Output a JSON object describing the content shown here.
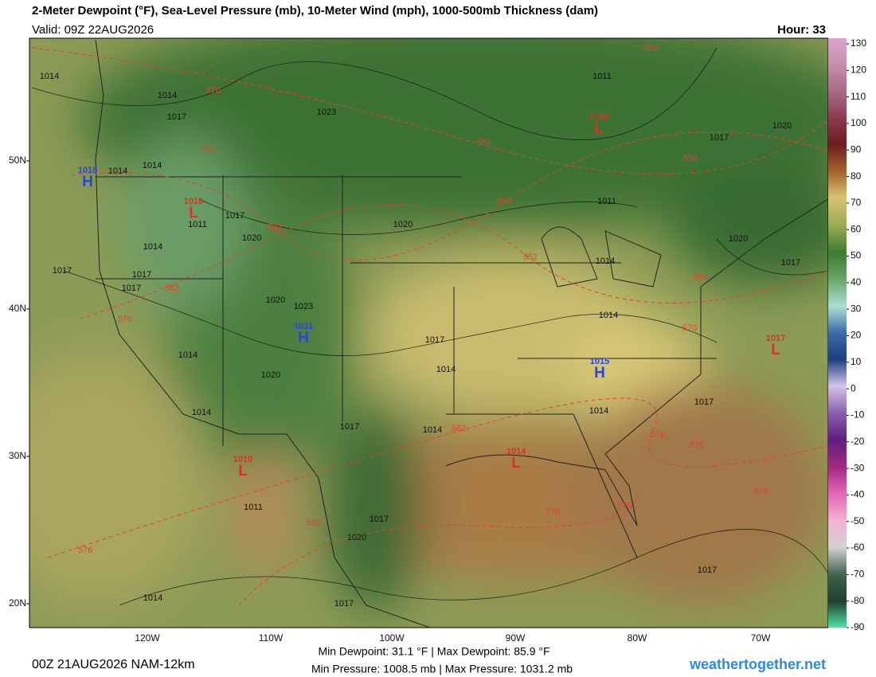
{
  "header": {
    "title": "2-Meter Dewpoint (°F), Sea-Level Pressure (mb), 10-Meter Wind (mph), 1000-500mb Thickness (dam)",
    "valid": "Valid: 09Z 22AUG2026",
    "hour": "Hour: 33"
  },
  "colorbar": {
    "ticks": [
      130,
      120,
      110,
      100,
      90,
      80,
      70,
      60,
      50,
      40,
      30,
      20,
      10,
      0,
      -10,
      -20,
      -30,
      -40,
      -50,
      -60,
      -70,
      -80,
      -90
    ]
  },
  "axes": {
    "lat_labels": [
      "50N",
      "40N",
      "30N",
      "20N"
    ],
    "lon_labels": [
      "120W",
      "110W",
      "100W",
      "90W",
      "80W",
      "70W"
    ]
  },
  "map": {
    "pressure_labels": [
      "1014",
      "1014",
      "1017",
      "1023",
      "1011",
      "1020",
      "1017",
      "1014",
      "1014",
      "1017",
      "1011",
      "1020",
      "1014",
      "1011",
      "1020",
      "1017",
      "1017",
      "1017",
      "1020",
      "1023",
      "1014",
      "1020",
      "1014",
      "1017",
      "1017",
      "1014",
      "1014",
      "1014",
      "1014",
      "1017",
      "1017",
      "1014",
      "1020",
      "1011",
      "1017",
      "1020",
      "1014",
      "1017",
      "1017"
    ],
    "thickness_labels": [
      "552",
      "570",
      "552",
      "558",
      "576",
      "558",
      "582",
      "582",
      "552",
      "564",
      "576",
      "570",
      "582",
      "576",
      "576",
      "576",
      "576",
      "576",
      "582",
      "576"
    ],
    "centers": [
      {
        "letter": "H",
        "value": "1018"
      },
      {
        "letter": "L",
        "value": "1009"
      },
      {
        "letter": "L",
        "value": "1016"
      },
      {
        "letter": "H",
        "value": "1031"
      },
      {
        "letter": "H",
        "value": "1015"
      },
      {
        "letter": "L",
        "value": "1017"
      },
      {
        "letter": "L",
        "value": "1010"
      },
      {
        "letter": "L",
        "value": "1014"
      }
    ]
  },
  "footer": {
    "run": "00Z 21AUG2026 NAM-12km",
    "dewpoint": "Min Dewpoint: 31.1 °F | Max Dewpoint: 85.9 °F",
    "pressure": "Min Pressure: 1008.5 mb | Max Pressure: 1031.2 mb",
    "site": "weathertogether.net"
  }
}
